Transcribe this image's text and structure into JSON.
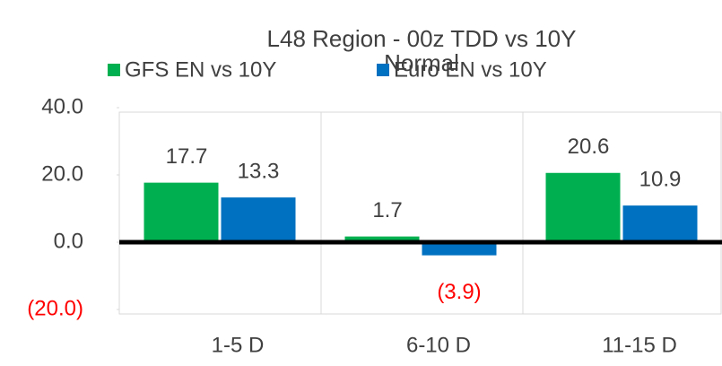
{
  "chart_data": {
    "type": "bar",
    "title": "L48 Region - 00z TDD vs 10Y Normal",
    "categories": [
      "1-5 D",
      "6-10 D",
      "11-15 D"
    ],
    "series": [
      {
        "name": "GFS EN vs 10Y",
        "color": "#00b050",
        "values": [
          17.7,
          1.7,
          20.6
        ]
      },
      {
        "name": "Euro EN vs 10Y",
        "color": "#0070c0",
        "values": [
          13.3,
          -3.9,
          10.9
        ],
        "value_labels": [
          "13.3",
          "(3.9)",
          "10.9"
        ]
      }
    ],
    "ylim": [
      -20,
      40
    ],
    "yticks": [
      {
        "value": -20,
        "label": "(20.0)"
      },
      {
        "value": 0,
        "label": "0.0"
      },
      {
        "value": 20,
        "label": "20.0"
      },
      {
        "value": 40,
        "label": "40.0"
      }
    ],
    "negative_color": "#ff0000"
  }
}
